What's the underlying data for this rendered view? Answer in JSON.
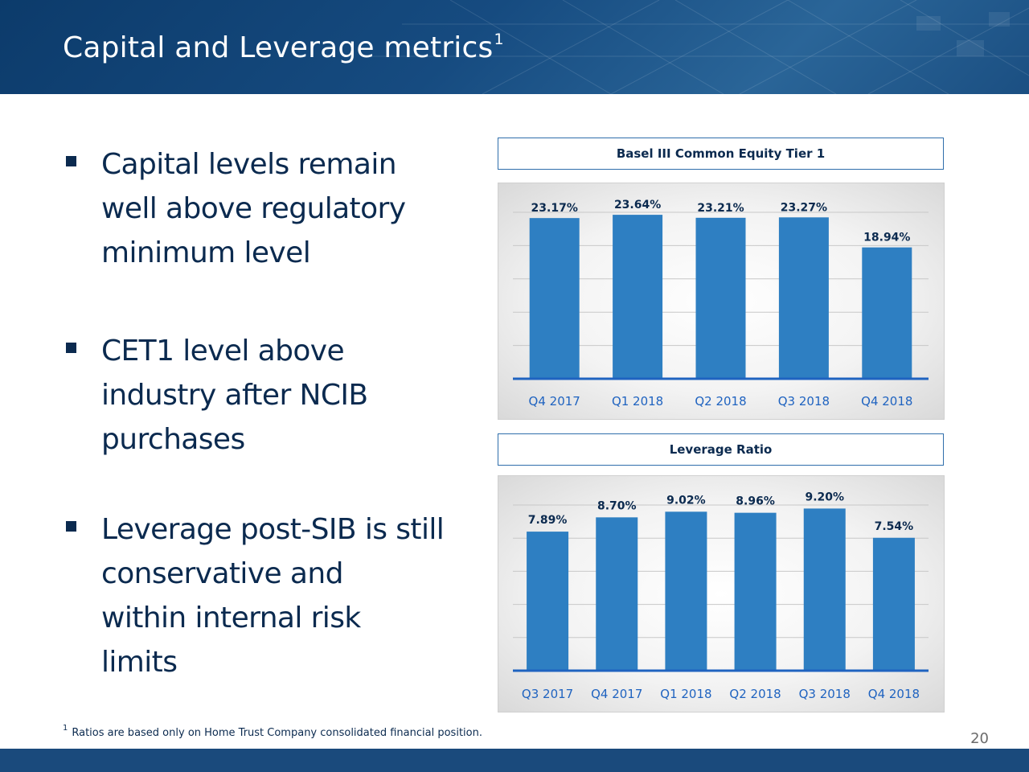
{
  "slide": {
    "title": "Capital and Leverage metrics",
    "title_footnote_mark": "1",
    "page_number": "20",
    "footnote_mark": "1",
    "footnote": "Ratios are based only on Home Trust Company consolidated financial position.",
    "colors": {
      "header": "#164b80",
      "text": "#0b2a4f",
      "bar": "#2e7fc2",
      "axis": "#1f63c0",
      "tick": "#1f63c0"
    }
  },
  "bullets": [
    {
      "text": "Capital levels remain\nwell  above  regulatory\nminimum level"
    },
    {
      "text": "CET1 level above\nindustry after NCIB\npurchases"
    },
    {
      "text": "Leverage post-SIB is still\nconservative and\nwithin internal risk\nlimits"
    }
  ],
  "chart_data": [
    {
      "type": "bar",
      "title": "Basel III Common Equity Tier 1",
      "categories": [
        "Q4 2017",
        "Q1 2018",
        "Q2 2018",
        "Q3 2018",
        "Q4 2018"
      ],
      "values": [
        23.17,
        23.64,
        23.21,
        23.27,
        18.94
      ],
      "labels": [
        "23.17%",
        "23.64%",
        "23.21%",
        "23.27%",
        "18.94%"
      ],
      "ylim": [
        0,
        24
      ],
      "grid": true,
      "legend": "none"
    },
    {
      "type": "bar",
      "title": "Leverage Ratio",
      "categories": [
        "Q3 2017",
        "Q4 2017",
        "Q1 2018",
        "Q2 2018",
        "Q3 2018",
        "Q4 2018"
      ],
      "values": [
        7.89,
        8.7,
        9.02,
        8.96,
        9.2,
        7.54
      ],
      "labels": [
        "7.89%",
        "8.70%",
        "9.02%",
        "8.96%",
        "9.20%",
        "7.54%"
      ],
      "ylim": [
        0,
        9.4
      ],
      "grid": true,
      "legend": "none"
    }
  ]
}
